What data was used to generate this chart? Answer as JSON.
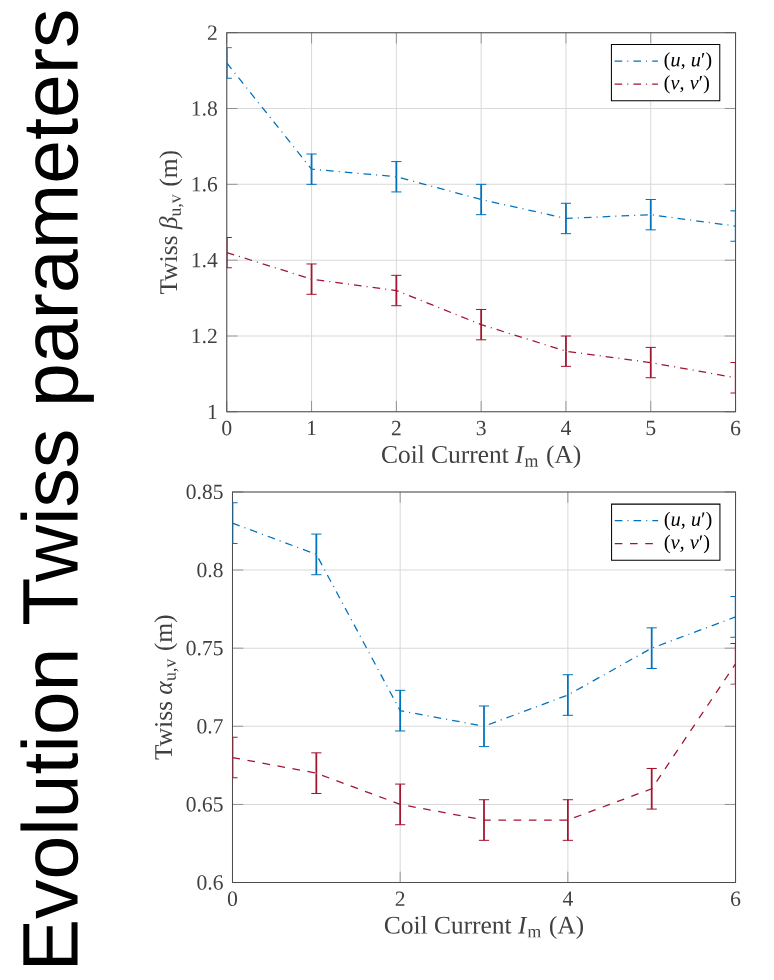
{
  "chart_data": [
    {
      "type": "line",
      "title": "Evolution Twiss parameters",
      "xlabel": "Coil Current *I*$_{m}$ (A)",
      "ylabel": "Twiss *β*$_{u,v}$ (m)",
      "x": [
        0,
        1,
        2,
        3,
        4,
        5,
        6
      ],
      "xlim": [
        0,
        6
      ],
      "ylim": [
        1,
        2
      ],
      "xticks": [
        0,
        1,
        2,
        3,
        4,
        5,
        6
      ],
      "yticks": [
        1,
        1.2,
        1.4,
        1.6,
        1.8,
        2
      ],
      "grid": true,
      "legend": "top right",
      "marker": "none",
      "series": [
        {
          "name": "(*u*, *u*′)",
          "color": "#0072bd",
          "line_style": "dashdot",
          "values": [
            1.92,
            1.64,
            1.62,
            1.56,
            1.51,
            1.52,
            1.49
          ],
          "errors": [
            0.04,
            0.04,
            0.04,
            0.04,
            0.04,
            0.04,
            0.04
          ]
        },
        {
          "name": "(*v*, *v*′)",
          "color": "#a2142f",
          "line_style": "dashdot",
          "values": [
            1.42,
            1.35,
            1.32,
            1.23,
            1.16,
            1.13,
            1.09
          ],
          "errors": [
            0.04,
            0.04,
            0.04,
            0.04,
            0.04,
            0.04,
            0.04
          ]
        }
      ]
    },
    {
      "type": "line",
      "xlabel": "Coil Current *I*$_{m}$ (A)",
      "ylabel": "Twiss *α*$_{u,v}$ (m)",
      "x": [
        0,
        1,
        2,
        3,
        4,
        5,
        6
      ],
      "xlim": [
        0,
        6
      ],
      "ylim": [
        0.6,
        0.85
      ],
      "xticks": [
        0,
        2,
        4,
        6
      ],
      "yticks": [
        0.6,
        0.65,
        0.7,
        0.75,
        0.8,
        0.85
      ],
      "grid": true,
      "legend": "top right",
      "marker": "none",
      "series": [
        {
          "name": "(*u*, *u*′)",
          "color": "#0072bd",
          "line_style": "dashdot",
          "values": [
            0.83,
            0.81,
            0.71,
            0.7,
            0.72,
            0.75,
            0.77
          ],
          "errors": [
            0.013,
            0.013,
            0.013,
            0.013,
            0.013,
            0.013,
            0.013
          ]
        },
        {
          "name": "(*v*, *v*′)",
          "color": "#a2142f",
          "line_style": "dashed",
          "values": [
            0.68,
            0.67,
            0.65,
            0.64,
            0.64,
            0.66,
            0.74
          ],
          "errors": [
            0.013,
            0.013,
            0.013,
            0.013,
            0.013,
            0.013,
            0.013
          ]
        }
      ]
    }
  ]
}
